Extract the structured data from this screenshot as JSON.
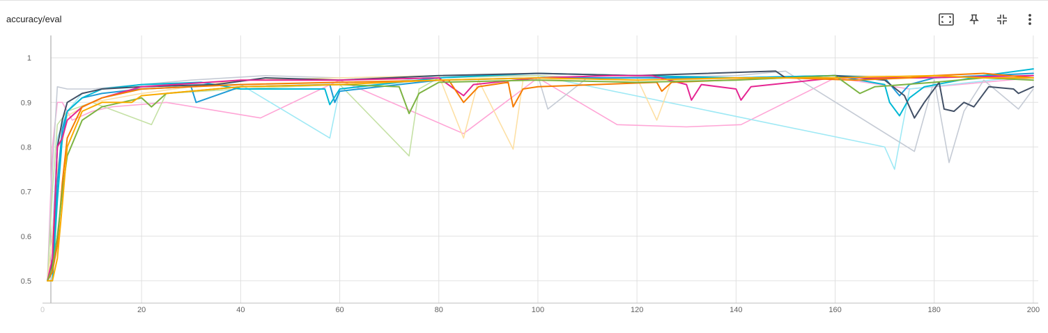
{
  "card": {
    "title": "accuracy/eval"
  },
  "toolbar": [
    {
      "name": "fit-domain-button",
      "icon": "fit-to-screen-icon"
    },
    {
      "name": "pin-button",
      "icon": "pin-icon"
    },
    {
      "name": "collapse-button",
      "icon": "collapse-icon"
    },
    {
      "name": "more-options-button",
      "icon": "more-vert-icon"
    }
  ],
  "chart_data": {
    "type": "line",
    "title": "accuracy/eval",
    "xlabel": "",
    "ylabel": "",
    "xlim": [
      0,
      201
    ],
    "ylim": [
      0.45,
      1.05
    ],
    "xticks": [
      0,
      20,
      40,
      60,
      80,
      100,
      120,
      140,
      160,
      180,
      200
    ],
    "yticks": [
      0.5,
      0.6,
      0.7,
      0.8,
      0.9,
      1
    ],
    "grid": true,
    "legend": "none",
    "series": [
      {
        "color": "#1f9bd6",
        "values": [
          [
            1,
            0.5
          ],
          [
            2,
            0.52
          ],
          [
            3,
            0.72
          ],
          [
            4,
            0.84
          ],
          [
            5,
            0.88
          ],
          [
            8,
            0.91
          ],
          [
            12,
            0.92
          ],
          [
            20,
            0.93
          ],
          [
            30,
            0.935
          ],
          [
            31,
            0.9
          ],
          [
            40,
            0.935
          ],
          [
            58,
            0.94
          ],
          [
            59,
            0.9
          ],
          [
            60,
            0.925
          ],
          [
            80,
            0.95
          ],
          [
            100,
            0.955
          ],
          [
            120,
            0.955
          ],
          [
            140,
            0.955
          ],
          [
            160,
            0.96
          ],
          [
            170,
            0.955
          ],
          [
            173,
            0.915
          ],
          [
            175,
            0.94
          ],
          [
            180,
            0.955
          ],
          [
            190,
            0.96
          ],
          [
            200,
            0.965
          ]
        ]
      },
      {
        "color": "#00b8d4",
        "values": [
          [
            1,
            0.5
          ],
          [
            2,
            0.5
          ],
          [
            3,
            0.68
          ],
          [
            4,
            0.82
          ],
          [
            5,
            0.88
          ],
          [
            8,
            0.91
          ],
          [
            12,
            0.93
          ],
          [
            20,
            0.94
          ],
          [
            32,
            0.945
          ],
          [
            40,
            0.93
          ],
          [
            57,
            0.93
          ],
          [
            58,
            0.895
          ],
          [
            60,
            0.93
          ],
          [
            80,
            0.955
          ],
          [
            100,
            0.965
          ],
          [
            120,
            0.96
          ],
          [
            140,
            0.955
          ],
          [
            160,
            0.96
          ],
          [
            170,
            0.94
          ],
          [
            171,
            0.9
          ],
          [
            173,
            0.87
          ],
          [
            175,
            0.91
          ],
          [
            178,
            0.935
          ],
          [
            190,
            0.96
          ],
          [
            200,
            0.975
          ]
        ]
      },
      {
        "color": "#425066",
        "values": [
          [
            1,
            0.5
          ],
          [
            2,
            0.54
          ],
          [
            3,
            0.8
          ],
          [
            4,
            0.86
          ],
          [
            5,
            0.9
          ],
          [
            8,
            0.92
          ],
          [
            12,
            0.93
          ],
          [
            20,
            0.935
          ],
          [
            35,
            0.94
          ],
          [
            45,
            0.955
          ],
          [
            60,
            0.95
          ],
          [
            80,
            0.96
          ],
          [
            100,
            0.965
          ],
          [
            120,
            0.96
          ],
          [
            148,
            0.97
          ],
          [
            150,
            0.955
          ],
          [
            160,
            0.96
          ],
          [
            170,
            0.95
          ],
          [
            174,
            0.915
          ],
          [
            176,
            0.865
          ],
          [
            178,
            0.9
          ],
          [
            181,
            0.945
          ],
          [
            182,
            0.885
          ],
          [
            184,
            0.88
          ],
          [
            186,
            0.9
          ],
          [
            188,
            0.89
          ],
          [
            191,
            0.935
          ],
          [
            196,
            0.93
          ],
          [
            197,
            0.92
          ],
          [
            200,
            0.935
          ]
        ]
      },
      {
        "color": "#e52592",
        "values": [
          [
            1,
            0.5
          ],
          [
            2,
            0.55
          ],
          [
            3,
            0.8
          ],
          [
            4,
            0.82
          ],
          [
            5,
            0.86
          ],
          [
            8,
            0.89
          ],
          [
            12,
            0.91
          ],
          [
            20,
            0.935
          ],
          [
            40,
            0.95
          ],
          [
            60,
            0.95
          ],
          [
            80,
            0.955
          ],
          [
            85,
            0.915
          ],
          [
            87,
            0.94
          ],
          [
            100,
            0.955
          ],
          [
            115,
            0.96
          ],
          [
            123,
            0.96
          ],
          [
            130,
            0.94
          ],
          [
            131,
            0.905
          ],
          [
            133,
            0.94
          ],
          [
            140,
            0.93
          ],
          [
            141,
            0.905
          ],
          [
            143,
            0.935
          ],
          [
            160,
            0.955
          ],
          [
            177,
            0.955
          ],
          [
            200,
            0.96
          ]
        ]
      },
      {
        "color": "#f57c00",
        "values": [
          [
            1,
            0.5
          ],
          [
            2,
            0.52
          ],
          [
            3,
            0.58
          ],
          [
            4,
            0.72
          ],
          [
            5,
            0.82
          ],
          [
            8,
            0.89
          ],
          [
            12,
            0.91
          ],
          [
            20,
            0.93
          ],
          [
            40,
            0.94
          ],
          [
            60,
            0.945
          ],
          [
            82,
            0.95
          ],
          [
            85,
            0.9
          ],
          [
            88,
            0.935
          ],
          [
            94,
            0.945
          ],
          [
            95,
            0.89
          ],
          [
            97,
            0.93
          ],
          [
            100,
            0.935
          ],
          [
            124,
            0.945
          ],
          [
            125,
            0.925
          ],
          [
            127,
            0.945
          ],
          [
            150,
            0.955
          ],
          [
            164,
            0.95
          ],
          [
            175,
            0.955
          ],
          [
            180,
            0.96
          ],
          [
            190,
            0.965
          ],
          [
            200,
            0.955
          ]
        ]
      },
      {
        "color": "#7cb342",
        "values": [
          [
            1,
            0.5
          ],
          [
            2,
            0.53
          ],
          [
            3,
            0.6
          ],
          [
            4,
            0.7
          ],
          [
            5,
            0.78
          ],
          [
            8,
            0.86
          ],
          [
            12,
            0.89
          ],
          [
            20,
            0.91
          ],
          [
            22,
            0.89
          ],
          [
            25,
            0.92
          ],
          [
            40,
            0.935
          ],
          [
            60,
            0.94
          ],
          [
            72,
            0.935
          ],
          [
            74,
            0.875
          ],
          [
            76,
            0.92
          ],
          [
            80,
            0.945
          ],
          [
            100,
            0.95
          ],
          [
            120,
            0.945
          ],
          [
            140,
            0.95
          ],
          [
            160,
            0.96
          ],
          [
            165,
            0.92
          ],
          [
            168,
            0.935
          ],
          [
            180,
            0.945
          ],
          [
            190,
            0.955
          ],
          [
            200,
            0.95
          ]
        ]
      },
      {
        "color": "#f9ab00",
        "values": [
          [
            1,
            0.5
          ],
          [
            2,
            0.5
          ],
          [
            3,
            0.55
          ],
          [
            4,
            0.67
          ],
          [
            5,
            0.8
          ],
          [
            8,
            0.88
          ],
          [
            12,
            0.9
          ],
          [
            18,
            0.9
          ],
          [
            20,
            0.915
          ],
          [
            40,
            0.935
          ],
          [
            60,
            0.94
          ],
          [
            80,
            0.95
          ],
          [
            100,
            0.955
          ],
          [
            120,
            0.95
          ],
          [
            140,
            0.955
          ],
          [
            160,
            0.955
          ],
          [
            180,
            0.96
          ],
          [
            190,
            0.955
          ],
          [
            200,
            0.955
          ]
        ]
      },
      {
        "color": "#ffa5d6",
        "light": true,
        "values": [
          [
            1,
            0.5
          ],
          [
            2,
            0.8
          ],
          [
            3,
            0.9
          ],
          [
            4,
            0.9
          ],
          [
            6,
            0.86
          ],
          [
            10,
            0.88
          ],
          [
            14,
            0.89
          ],
          [
            25,
            0.9
          ],
          [
            44,
            0.865
          ],
          [
            60,
            0.95
          ],
          [
            85,
            0.83
          ],
          [
            100,
            0.955
          ],
          [
            116,
            0.85
          ],
          [
            130,
            0.845
          ],
          [
            141,
            0.85
          ],
          [
            160,
            0.955
          ],
          [
            175,
            0.93
          ],
          [
            200,
            0.955
          ]
        ]
      },
      {
        "color": "#9fe9f5",
        "light": true,
        "values": [
          [
            1,
            0.5
          ],
          [
            2,
            0.6
          ],
          [
            3,
            0.82
          ],
          [
            5,
            0.88
          ],
          [
            8,
            0.92
          ],
          [
            12,
            0.93
          ],
          [
            20,
            0.94
          ],
          [
            40,
            0.94
          ],
          [
            58,
            0.82
          ],
          [
            60,
            0.93
          ],
          [
            80,
            0.96
          ],
          [
            100,
            0.96
          ],
          [
            170,
            0.8
          ],
          [
            172,
            0.75
          ],
          [
            175,
            0.93
          ],
          [
            200,
            0.96
          ]
        ]
      },
      {
        "color": "#c5cbd5",
        "light": true,
        "values": [
          [
            1,
            0.5
          ],
          [
            2,
            0.75
          ],
          [
            3,
            0.935
          ],
          [
            5,
            0.93
          ],
          [
            10,
            0.93
          ],
          [
            30,
            0.95
          ],
          [
            45,
            0.96
          ],
          [
            60,
            0.955
          ],
          [
            80,
            0.96
          ],
          [
            100,
            0.96
          ],
          [
            102,
            0.885
          ],
          [
            110,
            0.955
          ],
          [
            140,
            0.96
          ],
          [
            150,
            0.97
          ],
          [
            176,
            0.79
          ],
          [
            180,
            0.95
          ],
          [
            183,
            0.765
          ],
          [
            186,
            0.88
          ],
          [
            190,
            0.95
          ],
          [
            197,
            0.885
          ],
          [
            200,
            0.93
          ]
        ]
      },
      {
        "color": "#c5e1a5",
        "light": true,
        "values": [
          [
            1,
            0.5
          ],
          [
            2,
            0.7
          ],
          [
            3,
            0.85
          ],
          [
            5,
            0.88
          ],
          [
            10,
            0.9
          ],
          [
            22,
            0.85
          ],
          [
            25,
            0.92
          ],
          [
            40,
            0.93
          ],
          [
            60,
            0.94
          ],
          [
            74,
            0.78
          ],
          [
            76,
            0.93
          ],
          [
            80,
            0.955
          ],
          [
            100,
            0.96
          ],
          [
            120,
            0.95
          ],
          [
            140,
            0.955
          ],
          [
            160,
            0.96
          ],
          [
            200,
            0.955
          ]
        ]
      },
      {
        "color": "#fde0a5",
        "light": true,
        "values": [
          [
            1,
            0.5
          ],
          [
            2,
            0.6
          ],
          [
            3,
            0.75
          ],
          [
            5,
            0.87
          ],
          [
            10,
            0.9
          ],
          [
            20,
            0.92
          ],
          [
            40,
            0.95
          ],
          [
            60,
            0.955
          ],
          [
            80,
            0.96
          ],
          [
            85,
            0.82
          ],
          [
            88,
            0.95
          ],
          [
            95,
            0.795
          ],
          [
            97,
            0.95
          ],
          [
            120,
            0.955
          ],
          [
            124,
            0.86
          ],
          [
            127,
            0.95
          ],
          [
            160,
            0.96
          ],
          [
            200,
            0.955
          ]
        ]
      }
    ]
  }
}
